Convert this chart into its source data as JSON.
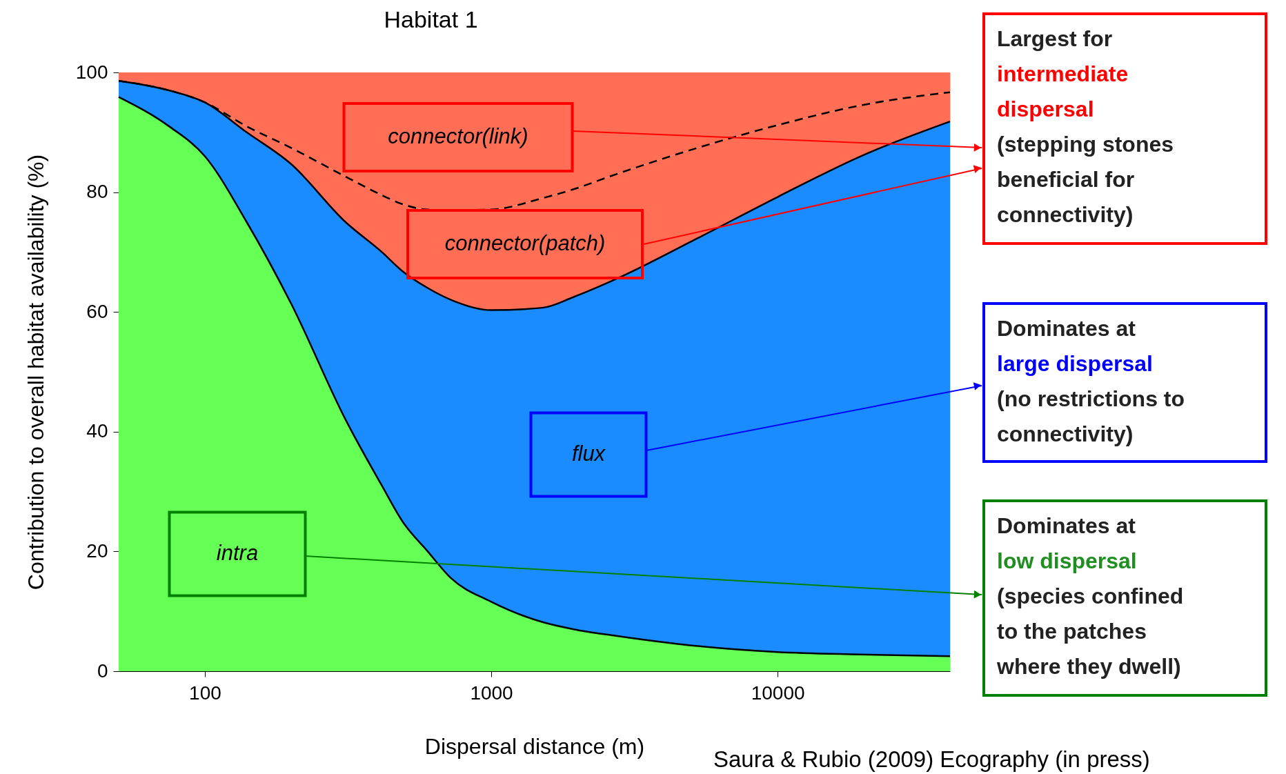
{
  "chart_data": {
    "type": "area",
    "title": "Habitat 1",
    "xlabel": "Dispersal distance (m)",
    "ylabel": "Contribution to overall habitat availability (%)",
    "stacked": true,
    "log": "x",
    "x": [
      50,
      75,
      100,
      140,
      200,
      310,
      415,
      490,
      600,
      725,
      1000,
      1510,
      1940,
      2730,
      5250,
      10000,
      19500,
      40000
    ],
    "xlim": [
      50,
      40000
    ],
    "xticks": [
      100,
      1000,
      10000
    ],
    "ylim": [
      0,
      100
    ],
    "yticks": [
      0,
      20,
      40,
      60,
      80,
      100
    ],
    "series": [
      {
        "name": "intra",
        "color": "#66ff55",
        "line_style": "solid",
        "values": [
          95.9,
          91,
          86,
          75,
          61.4,
          42,
          31,
          25,
          20,
          15.5,
          11.6,
          8.2,
          7,
          5.9,
          4.2,
          3.2,
          2.8,
          2.5
        ]
      },
      {
        "name": "flux",
        "color": "#1a8cff",
        "line_style": "solid",
        "values": [
          2.7,
          6,
          9,
          15,
          23.3,
          33,
          39,
          41.8,
          44,
          46.5,
          48.7,
          52.5,
          55.5,
          59.6,
          68.1,
          76,
          83.2,
          89.3
        ]
      },
      {
        "name": "connector(patch)",
        "color": "#ff6e55",
        "line_style": "dashed",
        "values": [
          0,
          0,
          0,
          1,
          2.7,
          7.6,
          9.5,
          11.2,
          13.1,
          15,
          16.8,
          18.3,
          18,
          17.5,
          15.1,
          12,
          8.5,
          4.9
        ]
      },
      {
        "name": "connector(link)",
        "color": "#ff6e55",
        "values": [
          1.4,
          3,
          5,
          9,
          12.6,
          17.4,
          20.5,
          22,
          22.9,
          23,
          22.9,
          21,
          19.5,
          17,
          12.6,
          8.8,
          5.5,
          3.3
        ]
      }
    ],
    "annotations": [
      "Largest for\nintermediate\ndispersal\n(stepping stones\nbeneficial for\nconnectivity)",
      "Dominates at\nlarge dispersal\n(no restrictions to\nconnectivity)",
      "Dominates at\nlow dispersal\n(species confined\nto the patches\nwhere they dwell)",
      "Saura & Rubio (2009) Ecography (in press)"
    ]
  }
}
